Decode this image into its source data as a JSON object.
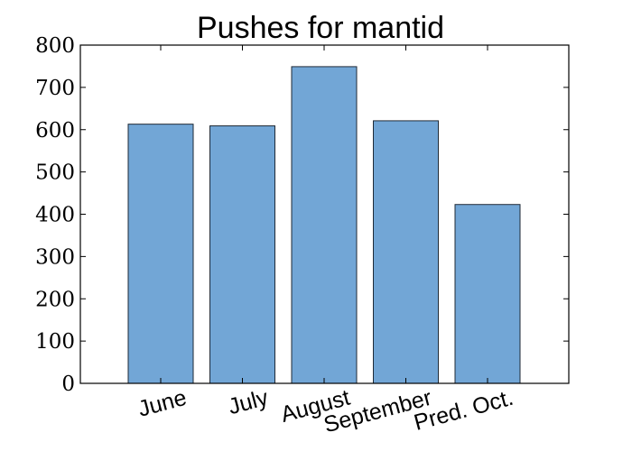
{
  "chart_data": {
    "type": "bar",
    "title": "Pushes for mantid",
    "categories": [
      "June",
      "July",
      "August",
      "September",
      "Pred. Oct."
    ],
    "values": [
      613,
      609,
      749,
      621,
      423
    ],
    "xlabel": "",
    "ylabel": "",
    "ylim": [
      0,
      800
    ],
    "yticks": [
      "0",
      "100",
      "200",
      "300",
      "400",
      "500",
      "600",
      "700",
      "800"
    ],
    "grid": false,
    "legend": "none",
    "colors": {
      "bar_fill": "#72a6d6",
      "bar_edge": "#1f2a36",
      "axis": "#000000"
    }
  }
}
